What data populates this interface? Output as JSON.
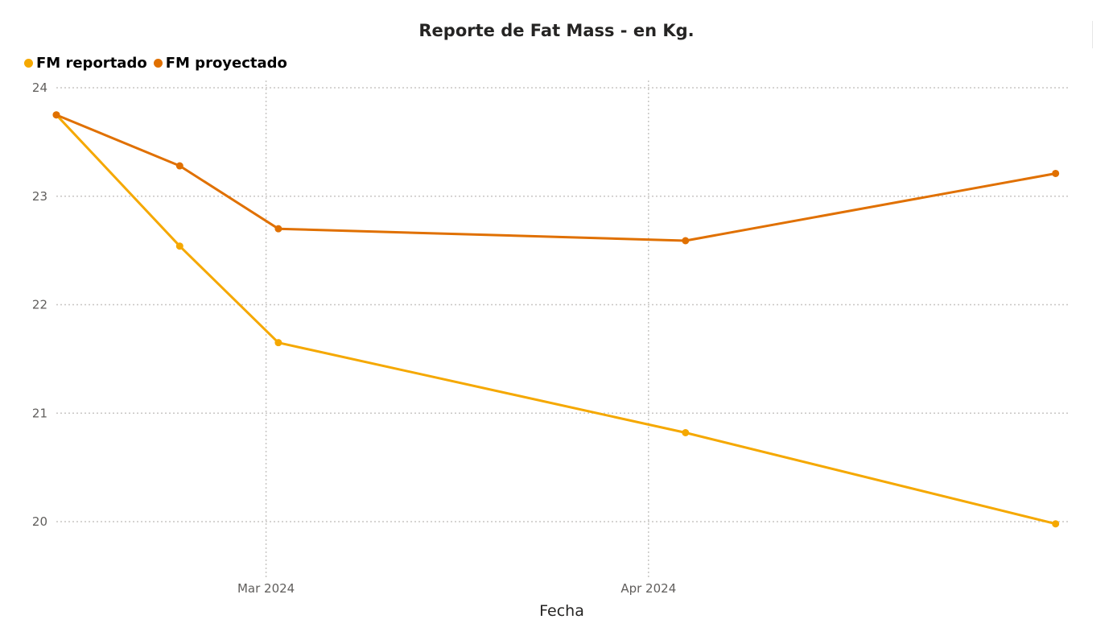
{
  "chart_data": {
    "type": "line",
    "title": "Reporte de Fat Mass - en Kg.",
    "xlabel": "Fecha",
    "ylabel": "",
    "x": [
      "2024-02-13",
      "2024-02-23",
      "2024-03-02",
      "2024-04-04",
      "2024-05-04"
    ],
    "xlim": [
      "2024-02-13",
      "2024-05-05"
    ],
    "x_ticks": [
      {
        "date": "2024-03-01",
        "label": "Mar 2024"
      },
      {
        "date": "2024-04-01",
        "label": "Apr 2024"
      }
    ],
    "ylim": [
      19.5,
      24
    ],
    "y_ticks": [
      20,
      21,
      22,
      23,
      24
    ],
    "grid": true,
    "legend": "top-left",
    "series": [
      {
        "name": "FM reportado",
        "color": "#F5A800",
        "values": [
          23.75,
          22.54,
          21.65,
          20.82,
          19.98
        ]
      },
      {
        "name": "FM proyectado",
        "color": "#E07000",
        "values": [
          23.75,
          23.28,
          22.7,
          22.59,
          23.21
        ]
      }
    ]
  }
}
